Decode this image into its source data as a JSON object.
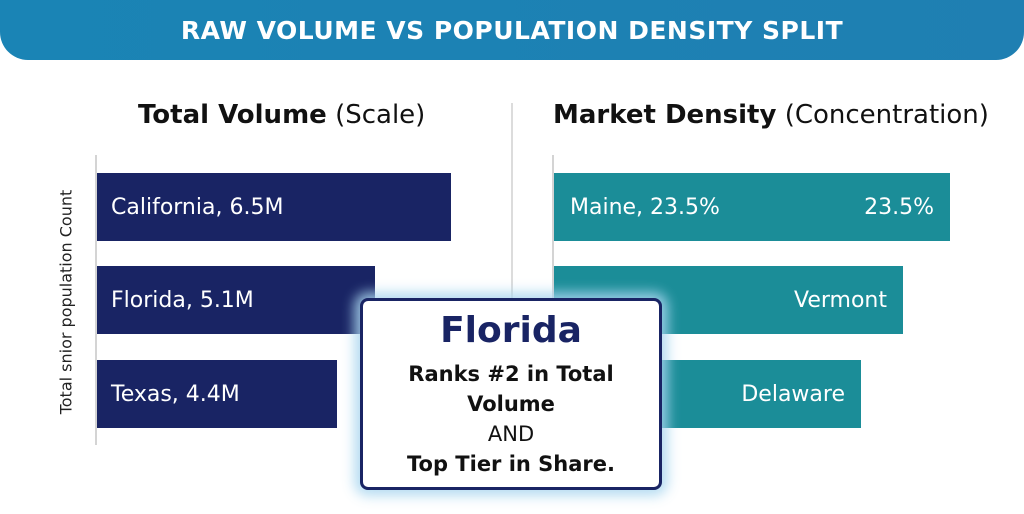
{
  "header": {
    "title": "RAW VOLUME VS POPULATION DENSITY SPLIT"
  },
  "left_panel": {
    "title_bold": "Total Volume",
    "title_rest": "(Scale)"
  },
  "right_panel": {
    "title_bold": "Market Density",
    "title_rest": "(Concentration)"
  },
  "callout": {
    "title": "Florida",
    "line1": "Ranks #2 in Total Volume",
    "line2": "AND",
    "line3": "Top Tier in Share."
  },
  "colors": {
    "banner": "#1a84b5",
    "volume_bars": "#192464",
    "density_bars": "#1b8d98"
  },
  "chart_data": [
    {
      "type": "bar",
      "orientation": "horizontal",
      "title": "Total Volume (Scale)",
      "ylabel": "Total snior population Count",
      "categories": [
        "California",
        "Florida",
        "Texas"
      ],
      "bar_labels": [
        "California, 6.5M",
        "Florida, 5.1M",
        "Texas, 4.4M"
      ],
      "values": [
        6.5,
        5.1,
        4.4
      ],
      "unit": "M",
      "xlim": [
        0,
        6.5
      ]
    },
    {
      "type": "bar",
      "orientation": "horizontal",
      "title": "Market Density (Concentration)",
      "categories": [
        "Maine",
        "Vermont",
        "Delaware"
      ],
      "bar_labels": [
        "Maine, 23.5%",
        "Vermont",
        "Delaware"
      ],
      "value_labels": [
        "23.5%",
        "",
        ""
      ],
      "values": [
        23.5,
        20.7,
        18.2
      ],
      "unit": "%",
      "xlim": [
        0,
        23.5
      ]
    }
  ]
}
